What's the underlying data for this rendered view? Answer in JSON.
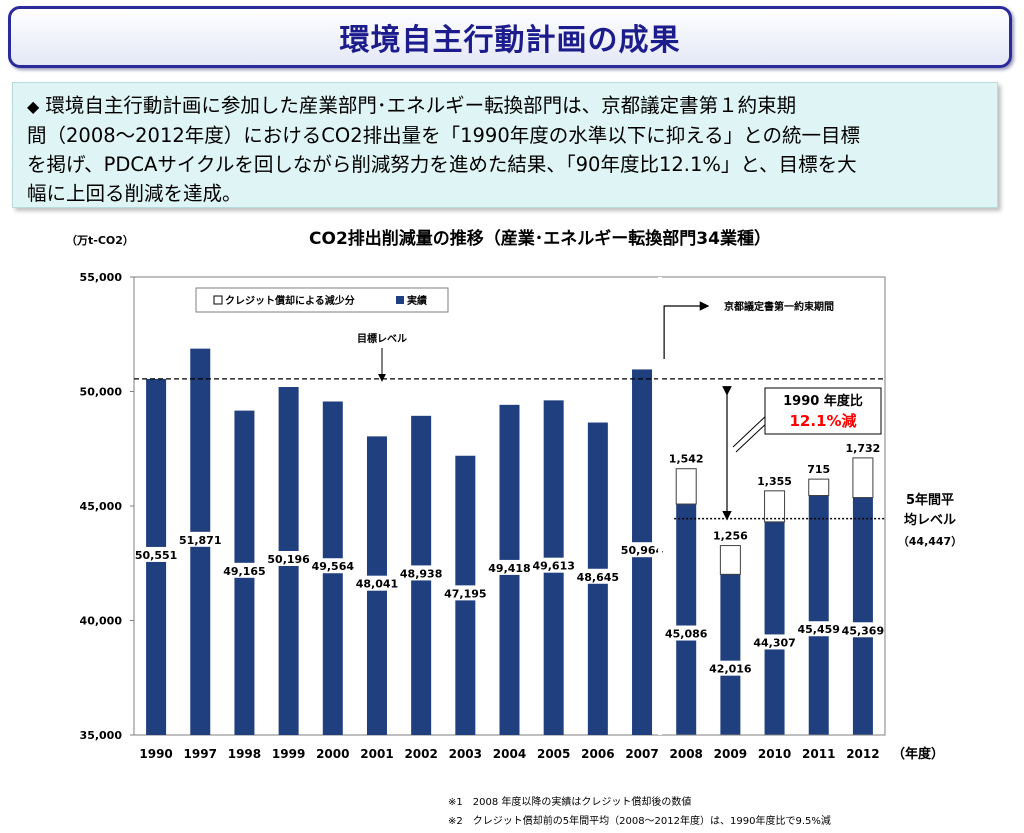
{
  "header": {
    "title": "環境自主行動計画の成果"
  },
  "summary": {
    "bullet": "◆",
    "lines": [
      "環境自主行動計画に参加した産業部門･エネルギー転換部門は、京都議定書第１約束期",
      "間（2008～2012年度）におけるCO2排出量を「1990年度の水準以下に抑える」との統一目標",
      "を掲げ、PDCAサイクルを回しながら削減努力を進めた結果、「90年度比12.1%」と、目標を大",
      "幅に上回る削減を達成。"
    ]
  },
  "chart_data": {
    "type": "bar",
    "title": "CO2排出削減量の推移（産業･エネルギー転換部門34業種）",
    "ylabel": "（万t-CO2）",
    "xlabel": "（年度）",
    "ylim": [
      35000,
      55000
    ],
    "yticks": [
      "35,000",
      "40,000",
      "45,000",
      "50,000",
      "55,000"
    ],
    "categories": [
      "1990",
      "1997",
      "1998",
      "1999",
      "2000",
      "2001",
      "2002",
      "2003",
      "2004",
      "2005",
      "2006",
      "2007",
      "2008",
      "2009",
      "2010",
      "2011",
      "2012"
    ],
    "series": [
      {
        "name": "実績",
        "color": "#1f3f7f",
        "values": [
          50551,
          51871,
          49165,
          50196,
          49564,
          48041,
          48938,
          47195,
          49418,
          49613,
          48645,
          50964,
          45086,
          42016,
          44307,
          45459,
          45369
        ],
        "labels": [
          "50,551",
          "51,871",
          "49,165",
          "50,196",
          "49,564",
          "48,041",
          "48,938",
          "47,195",
          "49,418",
          "49,613",
          "48,645",
          "50,964",
          "45,086",
          "42,016",
          "44,307",
          "45,459",
          "45,369"
        ]
      },
      {
        "name": "クレジット償却による減少分",
        "color": "#ffffff",
        "values": [
          0,
          0,
          0,
          0,
          0,
          0,
          0,
          0,
          0,
          0,
          0,
          0,
          1542,
          1256,
          1355,
          715,
          1732
        ],
        "labels": [
          "",
          "",
          "",
          "",
          "",
          "",
          "",
          "",
          "",
          "",
          "",
          "",
          "1,542",
          "1,256",
          "1,355",
          "715",
          "1,732"
        ]
      }
    ],
    "legend_position": "top-left",
    "target_line": {
      "value": 50551,
      "label": "目標レベル"
    },
    "average_line": {
      "value": 44447,
      "label_line1": "5年間平",
      "label_line2": "均レベル",
      "label_line3": "（44,447）"
    },
    "period_label": "京都議定書第一約束期間",
    "callout": {
      "line1": "1990 年度比",
      "line2": "12.1%減",
      "line2_color": "#ff0000"
    },
    "grid": false
  },
  "notes": [
    "※1　2008 年度以降の実績はクレジット償却後の数値",
    "※2　クレジット償却前の5年間平均（2008〜2012年度）は、1990年度比で9.5%減"
  ]
}
